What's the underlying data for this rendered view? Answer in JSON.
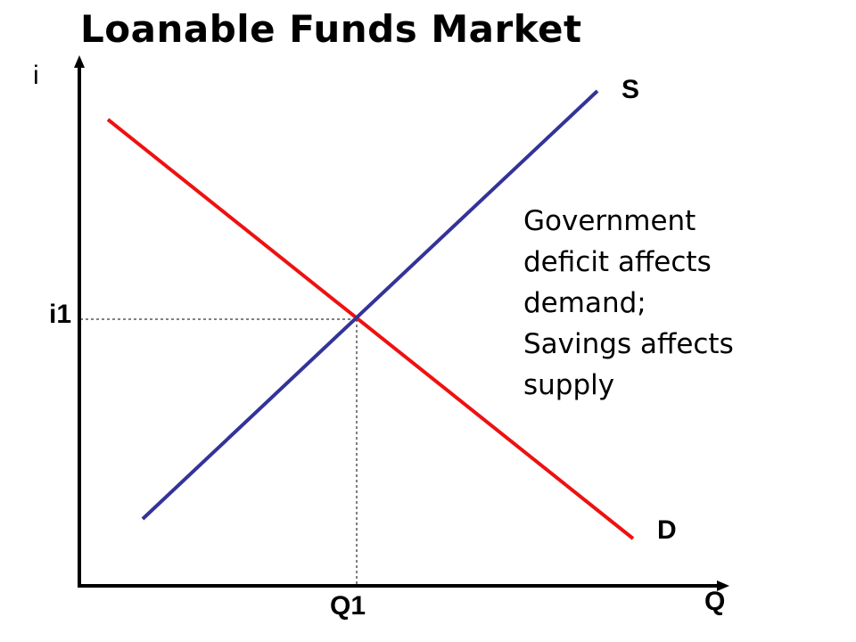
{
  "title": "Loanable Funds Market",
  "axes": {
    "y_label": "i",
    "x_label": "Q"
  },
  "curves": {
    "supply": {
      "label": "S",
      "color": "#333399"
    },
    "demand": {
      "label": "D",
      "color": "#ee1111"
    }
  },
  "equilibrium": {
    "rate_label": "i1",
    "quantity_label": "Q1"
  },
  "annotation": {
    "lines": [
      "Government",
      "deficit affects",
      "demand;",
      "Savings affects",
      "supply"
    ]
  }
}
